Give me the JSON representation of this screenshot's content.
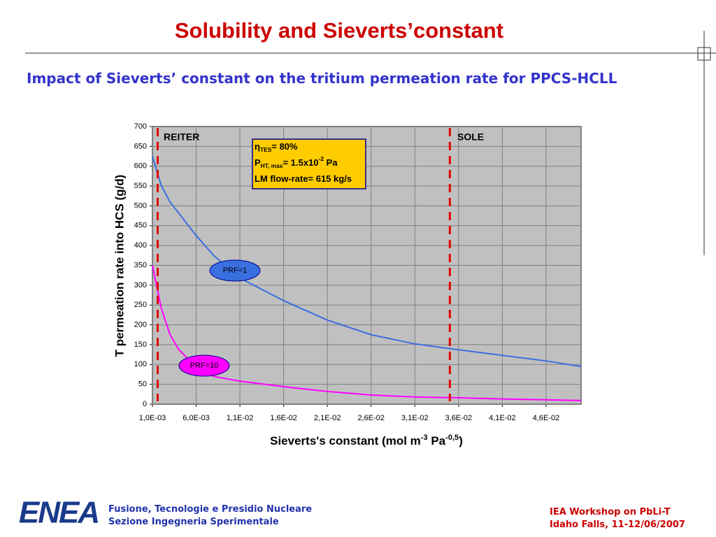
{
  "slide": {
    "title": "Solubility and Sieverts’constant",
    "subtitle": "Impact of Sieverts’ constant on the tritium permeation rate for PPCS-HCLL",
    "footer_left": {
      "logo": "ENEA",
      "lines": [
        "Fusione, Tecnologie e Presidio Nucleare",
        "Sezione Ingegneria Sperimentale"
      ]
    },
    "footer_right": {
      "lines": [
        "IEA Workshop on PbLi-T",
        "Idaho Falls, 11-12/06/2007"
      ]
    }
  },
  "chart_data": {
    "type": "line",
    "ylabel": "T permeation rate into HCS (g/d)",
    "xlabel_parts": [
      "Sieverts's constant (mol m",
      "-3",
      " Pa",
      "-0,5",
      ")"
    ],
    "xlim": [
      0.001,
      0.05
    ],
    "xticks": [
      {
        "value": 0.001,
        "label": "1,0E-03"
      },
      {
        "value": 0.006,
        "label": "6,0E-03"
      },
      {
        "value": 0.011,
        "label": "1,1E-02"
      },
      {
        "value": 0.016,
        "label": "1,6E-02"
      },
      {
        "value": 0.021,
        "label": "2,1E-02"
      },
      {
        "value": 0.026,
        "label": "2,6E-02"
      },
      {
        "value": 0.031,
        "label": "3,1E-02"
      },
      {
        "value": 0.036,
        "label": "3,6E-02"
      },
      {
        "value": 0.041,
        "label": "4,1E-02"
      },
      {
        "value": 0.046,
        "label": "4,6E-02"
      }
    ],
    "ylim": [
      0,
      700
    ],
    "yticks": [
      0,
      50,
      100,
      150,
      200,
      250,
      300,
      350,
      400,
      450,
      500,
      550,
      600,
      650,
      700
    ],
    "grid": true,
    "x": [
      0.001,
      0.002,
      0.003,
      0.004,
      0.006,
      0.008,
      0.011,
      0.016,
      0.021,
      0.026,
      0.031,
      0.036,
      0.041,
      0.046,
      0.05
    ],
    "series": [
      {
        "name": "PRF=1",
        "color": "#3a6fe0",
        "values": [
          625,
          552,
          510,
          482,
          425,
          375,
          318,
          261,
          212,
          175,
          152,
          137,
          123,
          109,
          95
        ]
      },
      {
        "name": "PRF=10",
        "color": "#ff00ff",
        "values": [
          350,
          243,
          176,
          138,
          93,
          70,
          58,
          44,
          32,
          23,
          18,
          16,
          13,
          11,
          9
        ]
      }
    ],
    "reference_lines": [
      {
        "label": "REITER",
        "x": 0.0016
      },
      {
        "label": "SOLE",
        "x": 0.035
      }
    ],
    "info_box": [
      [
        "η",
        "TES",
        "= 80%"
      ],
      [
        "P",
        "HT, max",
        "= 1.5x10",
        "-2",
        " Pa"
      ],
      [
        "LM flow-rate= 615 kg/s"
      ]
    ]
  }
}
